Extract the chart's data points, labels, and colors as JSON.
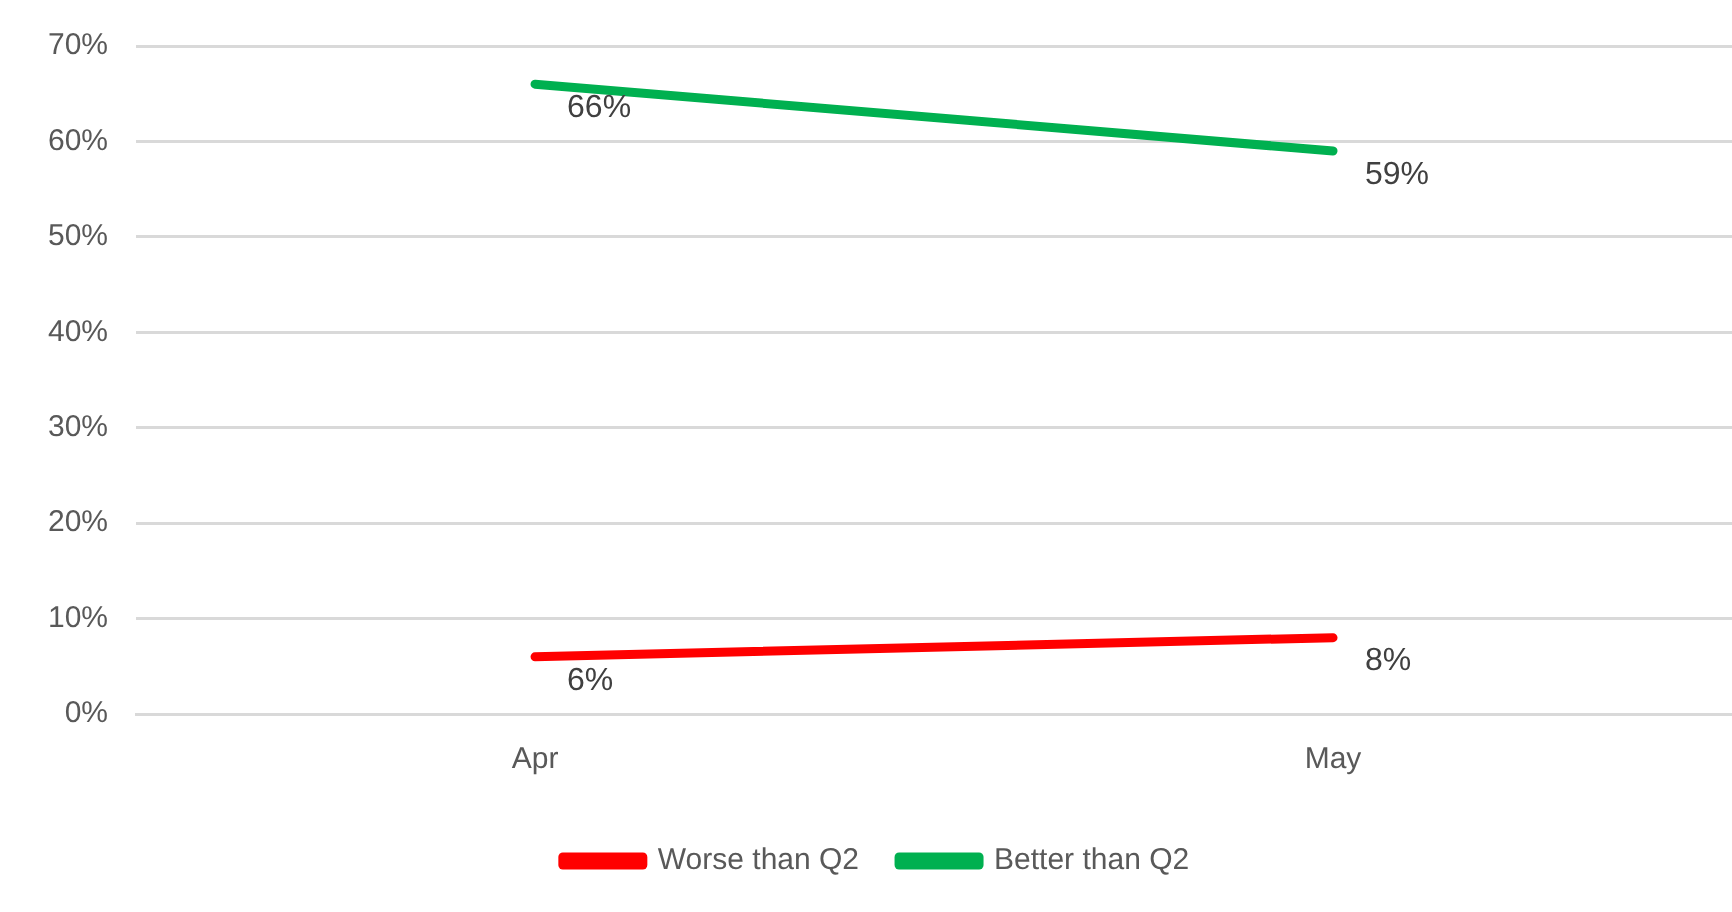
{
  "chart_data": {
    "type": "line",
    "categories": [
      "Apr",
      "May"
    ],
    "series": [
      {
        "name": "Worse than Q2",
        "color": "#ff0000",
        "values": [
          6,
          8
        ],
        "value_labels": [
          "6%",
          "8%"
        ]
      },
      {
        "name": "Better than Q2",
        "color": "#00b050",
        "values": [
          66,
          59
        ],
        "value_labels": [
          "66%",
          "59%"
        ]
      }
    ],
    "ylim": [
      0,
      70
    ],
    "yticks": [
      {
        "value": 0,
        "label": "0%"
      },
      {
        "value": 10,
        "label": "10%"
      },
      {
        "value": 20,
        "label": "20%"
      },
      {
        "value": 30,
        "label": "30%"
      },
      {
        "value": 40,
        "label": "40%"
      },
      {
        "value": 50,
        "label": "50%"
      },
      {
        "value": 60,
        "label": "60%"
      },
      {
        "value": 70,
        "label": "70%"
      }
    ],
    "grid": "y",
    "legend": "bottom",
    "marker": "none",
    "line_style": "solid"
  }
}
